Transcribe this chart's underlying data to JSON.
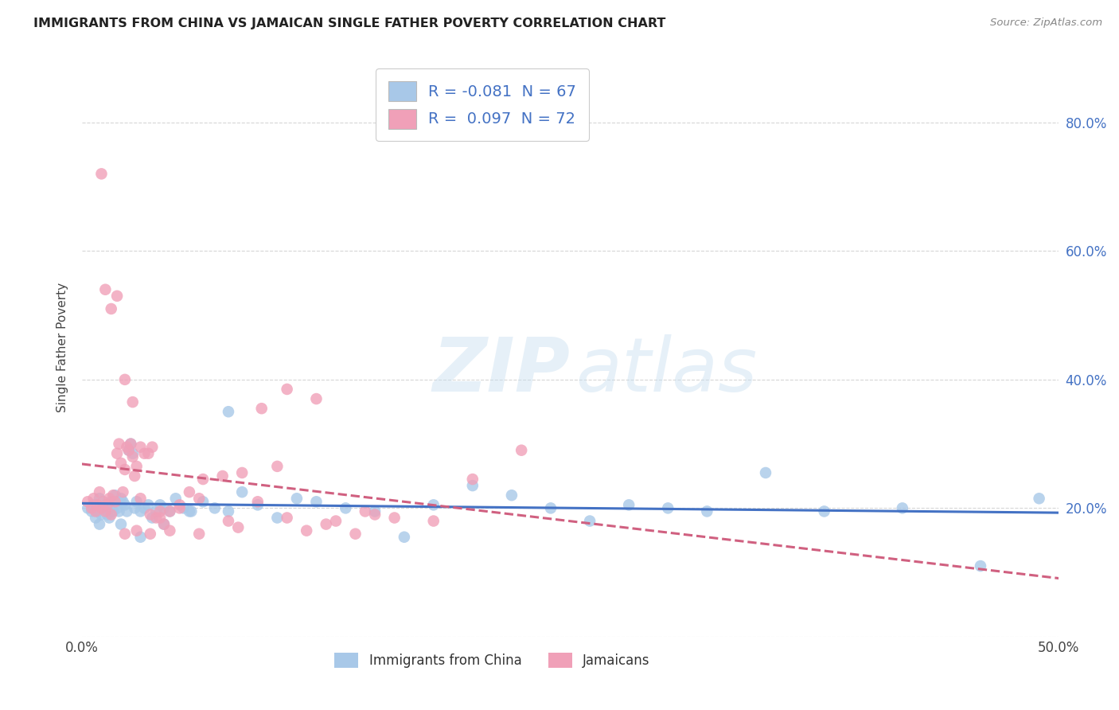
{
  "title": "IMMIGRANTS FROM CHINA VS JAMAICAN SINGLE FATHER POVERTY CORRELATION CHART",
  "source": "Source: ZipAtlas.com",
  "ylabel": "Single Father Poverty",
  "xlim": [
    0.0,
    0.5
  ],
  "ylim": [
    0.0,
    0.9
  ],
  "legend_r_china": "-0.081",
  "legend_n_china": "67",
  "legend_r_jamaican": "0.097",
  "legend_n_jamaican": "72",
  "china_color": "#a8c8e8",
  "jamaican_color": "#f0a0b8",
  "china_line_color": "#4472c4",
  "jamaican_line_color": "#d06080",
  "background_color": "#ffffff",
  "grid_color": "#cccccc",
  "watermark_zip": "ZIP",
  "watermark_atlas": "atlas",
  "china_x": [
    0.003,
    0.005,
    0.006,
    0.007,
    0.008,
    0.009,
    0.01,
    0.011,
    0.012,
    0.013,
    0.014,
    0.015,
    0.016,
    0.017,
    0.018,
    0.019,
    0.02,
    0.021,
    0.022,
    0.023,
    0.024,
    0.025,
    0.026,
    0.027,
    0.028,
    0.03,
    0.032,
    0.034,
    0.036,
    0.038,
    0.04,
    0.042,
    0.045,
    0.048,
    0.052,
    0.056,
    0.062,
    0.068,
    0.075,
    0.082,
    0.09,
    0.1,
    0.11,
    0.12,
    0.135,
    0.15,
    0.165,
    0.18,
    0.2,
    0.22,
    0.24,
    0.26,
    0.28,
    0.3,
    0.32,
    0.35,
    0.38,
    0.42,
    0.46,
    0.49,
    0.009,
    0.013,
    0.02,
    0.03,
    0.042,
    0.055,
    0.075
  ],
  "china_y": [
    0.2,
    0.195,
    0.205,
    0.185,
    0.195,
    0.215,
    0.19,
    0.2,
    0.205,
    0.19,
    0.185,
    0.21,
    0.195,
    0.22,
    0.2,
    0.195,
    0.215,
    0.21,
    0.205,
    0.195,
    0.29,
    0.3,
    0.285,
    0.2,
    0.21,
    0.195,
    0.2,
    0.205,
    0.185,
    0.195,
    0.205,
    0.2,
    0.195,
    0.215,
    0.2,
    0.195,
    0.21,
    0.2,
    0.195,
    0.225,
    0.205,
    0.185,
    0.215,
    0.21,
    0.2,
    0.195,
    0.155,
    0.205,
    0.235,
    0.22,
    0.2,
    0.18,
    0.205,
    0.2,
    0.195,
    0.255,
    0.195,
    0.2,
    0.11,
    0.215,
    0.175,
    0.195,
    0.175,
    0.155,
    0.175,
    0.195,
    0.35
  ],
  "jamaican_x": [
    0.003,
    0.005,
    0.006,
    0.007,
    0.008,
    0.009,
    0.01,
    0.011,
    0.012,
    0.013,
    0.014,
    0.015,
    0.016,
    0.017,
    0.018,
    0.019,
    0.02,
    0.021,
    0.022,
    0.023,
    0.024,
    0.025,
    0.026,
    0.027,
    0.028,
    0.03,
    0.032,
    0.034,
    0.036,
    0.038,
    0.04,
    0.042,
    0.045,
    0.05,
    0.055,
    0.062,
    0.072,
    0.082,
    0.092,
    0.105,
    0.115,
    0.13,
    0.145,
    0.16,
    0.18,
    0.2,
    0.225,
    0.01,
    0.012,
    0.015,
    0.018,
    0.022,
    0.026,
    0.03,
    0.035,
    0.04,
    0.05,
    0.06,
    0.075,
    0.09,
    0.105,
    0.12,
    0.14,
    0.022,
    0.028,
    0.035,
    0.045,
    0.06,
    0.08,
    0.1,
    0.125,
    0.15
  ],
  "jamaican_y": [
    0.21,
    0.2,
    0.215,
    0.195,
    0.205,
    0.225,
    0.2,
    0.21,
    0.195,
    0.205,
    0.215,
    0.19,
    0.22,
    0.21,
    0.285,
    0.3,
    0.27,
    0.225,
    0.26,
    0.295,
    0.29,
    0.3,
    0.28,
    0.25,
    0.265,
    0.295,
    0.285,
    0.285,
    0.295,
    0.185,
    0.185,
    0.175,
    0.195,
    0.205,
    0.225,
    0.245,
    0.25,
    0.255,
    0.355,
    0.385,
    0.165,
    0.18,
    0.195,
    0.185,
    0.18,
    0.245,
    0.29,
    0.72,
    0.54,
    0.51,
    0.53,
    0.4,
    0.365,
    0.215,
    0.19,
    0.195,
    0.2,
    0.215,
    0.18,
    0.21,
    0.185,
    0.37,
    0.16,
    0.16,
    0.165,
    0.16,
    0.165,
    0.16,
    0.17,
    0.265,
    0.175,
    0.19
  ]
}
